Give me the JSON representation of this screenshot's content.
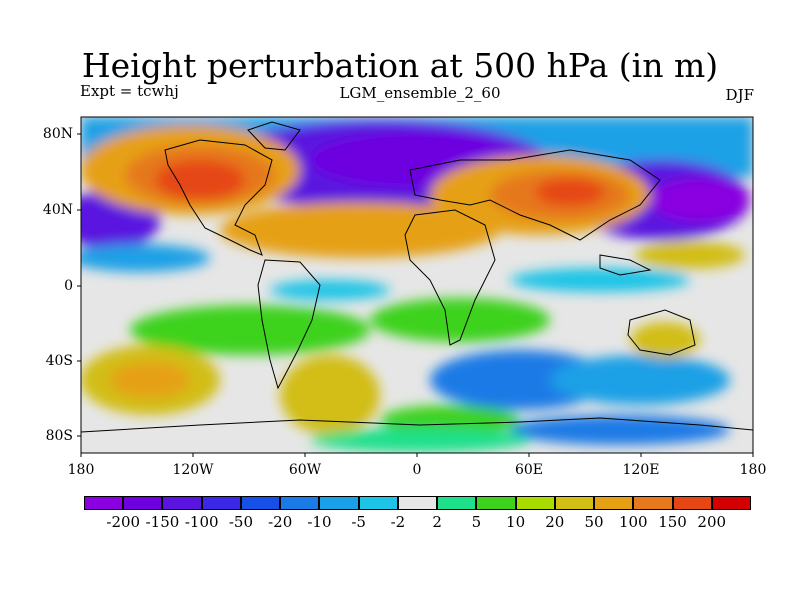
{
  "title": "Height perturbation at 500 hPa (in m)",
  "experiment": "Expt = tcwhj",
  "run_name": "LGM_ensemble_2_60",
  "season": "DJF",
  "map": {
    "lat_ticks": [
      "80N",
      "40N",
      "0",
      "40S",
      "80S"
    ],
    "lon_ticks": [
      "180",
      "120W",
      "60W",
      "0",
      "60E",
      "120E",
      "180"
    ]
  },
  "colorbar": {
    "colors": [
      "#8a00e0",
      "#6e00e0",
      "#5a14e0",
      "#3a28e6",
      "#1650e6",
      "#1a7ae6",
      "#1aa0e6",
      "#1ec4e6",
      "#e6e6e6",
      "#1ee08a",
      "#3cd21e",
      "#a8dc00",
      "#d2be14",
      "#e6a014",
      "#e6781e",
      "#e64614",
      "#d20000"
    ],
    "labels": [
      "-200",
      "-150",
      "-100",
      "-50",
      "-20",
      "-10",
      "-5",
      "-2",
      "2",
      "5",
      "10",
      "20",
      "50",
      "100",
      "150",
      "200"
    ]
  }
}
